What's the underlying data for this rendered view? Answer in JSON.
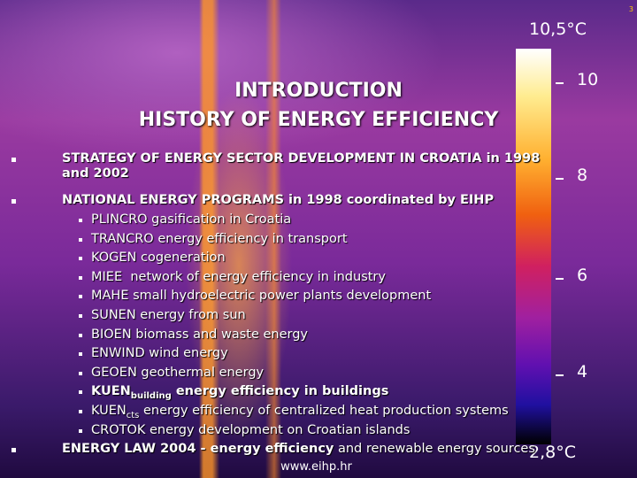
{
  "slide_number": "3",
  "scale": {
    "top": "10,5°C",
    "bottom": "2,8°C",
    "ticks": [
      "10",
      "8",
      "6",
      "4"
    ]
  },
  "title": [
    "INTRODUCTION",
    "HISTORY OF ENERGY EFFICIENCY"
  ],
  "bullets": [
    {
      "text": "STRATEGY OF ENERGY SECTOR DEVELOPMENT IN CROATIA in 1998 and 2002"
    },
    {
      "text": "NATIONAL ENERGY PROGRAMS in 1998 coordinated by EIHP",
      "items": [
        "PLINCRO gasification in Croatia",
        "TRANCRO energy efficiency in transport",
        "KOGEN cogeneration",
        "MIEE  network of energy efficiency in industry",
        "MAHE small hydroelectric power plants development",
        "SUNEN energy from sun",
        "BIOEN biomass and waste energy",
        "ENWIND wind energy",
        "GEOEN geothermal energy",
        {
          "main": "KUEN",
          "sub": "building",
          "rest": " energy efficiency in buildings",
          "bold": true
        },
        {
          "main": "KUEN",
          "sub": "cts",
          "rest": " energy efficiency of centralized heat production systems"
        },
        "CROTOK energy development on Croatian islands"
      ]
    },
    {
      "bold": "ENERGY LAW 2004 - energy efficiency",
      "rest": " and renewable energy sources"
    }
  ],
  "footer": "www.eihp.hr"
}
